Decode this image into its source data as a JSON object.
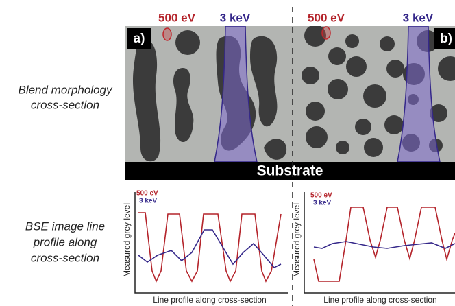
{
  "left_labels": {
    "morphology": [
      "Blend morphology",
      "cross-section"
    ],
    "profile": [
      "BSE image line",
      "profile along",
      "cross-section"
    ]
  },
  "panels": [
    {
      "label": "a)",
      "beam_labels": [
        "500 eV",
        "3 keV"
      ],
      "legend": [
        "500 eV",
        "3 keV"
      ],
      "y_axis": "Measured grey level",
      "x_axis": "Line profile along cross-section"
    },
    {
      "label": "b)",
      "beam_labels": [
        "500 eV",
        "3 keV"
      ],
      "legend": [
        "500 eV",
        "3 keV"
      ],
      "y_axis": "Measured grey level",
      "x_axis": "Line profile along cross-section"
    }
  ],
  "substrate": "Substrate"
}
